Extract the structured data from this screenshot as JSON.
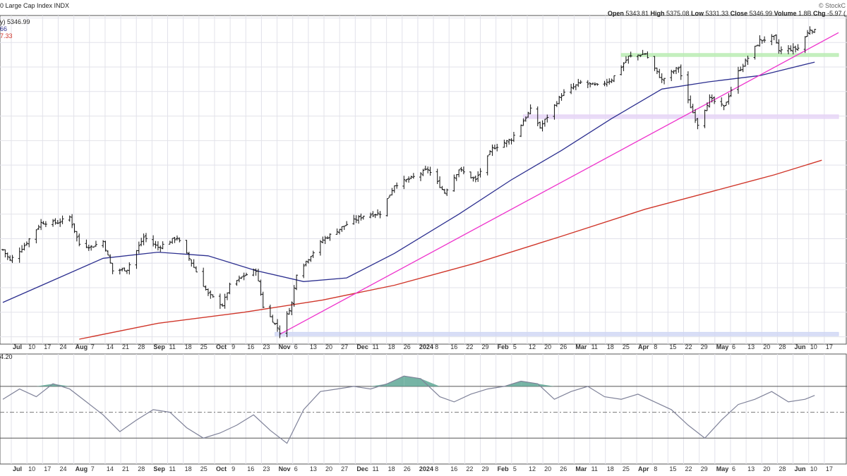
{
  "header": {
    "title": "0 Large Cap Index  INDX",
    "watermark": "© StockC",
    "quote_line": [
      {
        "label": "Open",
        "value": "5343.81"
      },
      {
        "label": "High",
        "value": "5375.08"
      },
      {
        "label": "Low",
        "value": "5331.33"
      },
      {
        "label": "Close",
        "value": "5346.99"
      },
      {
        "label": "Volume",
        "value": "1.8B"
      },
      {
        "label": "Chg",
        "value": "-5.97 ("
      }
    ],
    "legend_price": "y) 5346.99",
    "legend_ma50": "66",
    "legend_ma200": "7.33",
    "indicator_label": "4.20"
  },
  "colors": {
    "background": "#ffffff",
    "grid": "#e2e2ea",
    "price_bars": "#111111",
    "ma_short": "#2c2f8f",
    "ma_long": "#d0362a",
    "trendline": "#ee33cc",
    "support_zone_green": "#b8ecb0",
    "support_zone_purple": "#e6d4f6",
    "support_zone_blue": "#cfd6f4",
    "indicator_line": "#7f8299",
    "indicator_fill": "#5ea795"
  },
  "x_axis": {
    "labels": [
      "Jul",
      "10",
      "17",
      "24",
      "Aug",
      "7",
      "14",
      "21",
      "28",
      "Sep",
      "11",
      "18",
      "25",
      "Oct",
      "9",
      "16",
      "23",
      "Nov",
      "6",
      "13",
      "20",
      "27",
      "Dec",
      "11",
      "18",
      "26",
      "2024",
      "8",
      "16",
      "22",
      "29",
      "Feb",
      "5",
      "12",
      "20",
      "26",
      "Mar",
      "11",
      "18",
      "25",
      "Apr",
      "8",
      "15",
      "22",
      "29",
      "May",
      "6",
      "13",
      "20",
      "28",
      "Jun",
      "10",
      "17"
    ],
    "bold": [
      "Jul",
      "Aug",
      "Sep",
      "Oct",
      "Nov",
      "Dec",
      "2024",
      "Feb",
      "Mar",
      "Apr",
      "May",
      "Jun"
    ]
  },
  "chart_data": [
    {
      "type": "ohlc",
      "title": "0 Large Cap Index INDX",
      "x_start": "2023-07-03",
      "x_end": "2024-06-17",
      "ohlc_close": [
        5346.99
      ],
      "last_bar": {
        "open": 5343.81,
        "high": 5375.08,
        "low": 5331.33,
        "close": 5346.99,
        "volume": "1.8B",
        "change": -5.97
      },
      "series": [
        {
          "name": "Price",
          "points": [
            [
              "2023-07-03",
              4455
            ],
            [
              "2023-07-06",
              4411
            ],
            [
              "2023-07-12",
              4472
            ],
            [
              "2023-07-19",
              4565
            ],
            [
              "2023-07-26",
              4566
            ],
            [
              "2023-07-31",
              4588
            ],
            [
              "2023-08-04",
              4478
            ],
            [
              "2023-08-09",
              4467
            ],
            [
              "2023-08-14",
              4489
            ],
            [
              "2023-08-18",
              4369
            ],
            [
              "2023-08-24",
              4376
            ],
            [
              "2023-08-31",
              4507
            ],
            [
              "2023-09-06",
              4465
            ],
            [
              "2023-09-14",
              4505
            ],
            [
              "2023-09-20",
              4402
            ],
            [
              "2023-09-27",
              4274
            ],
            [
              "2023-10-03",
              4229
            ],
            [
              "2023-10-06",
              4308
            ],
            [
              "2023-10-12",
              4349
            ],
            [
              "2023-10-17",
              4373
            ],
            [
              "2023-10-20",
              4224
            ],
            [
              "2023-10-26",
              4137
            ],
            [
              "2023-10-27",
              4117
            ],
            [
              "2023-11-01",
              4237
            ],
            [
              "2023-11-03",
              4358
            ],
            [
              "2023-11-14",
              4495
            ],
            [
              "2023-11-24",
              4559
            ],
            [
              "2023-12-01",
              4594
            ],
            [
              "2023-12-08",
              4604
            ],
            [
              "2023-12-14",
              4719
            ],
            [
              "2023-12-21",
              4746
            ],
            [
              "2023-12-28",
              4783
            ],
            [
              "2024-01-04",
              4688
            ],
            [
              "2024-01-10",
              4783
            ],
            [
              "2024-01-17",
              4739
            ],
            [
              "2024-01-24",
              4868
            ],
            [
              "2024-02-01",
              4906
            ],
            [
              "2024-02-09",
              5026
            ],
            [
              "2024-02-13",
              4953
            ],
            [
              "2024-02-22",
              5087
            ],
            [
              "2024-03-01",
              5137
            ],
            [
              "2024-03-08",
              5123
            ],
            [
              "2024-03-14",
              5150
            ],
            [
              "2024-03-21",
              5241
            ],
            [
              "2024-03-28",
              5254
            ],
            [
              "2024-04-04",
              5147
            ],
            [
              "2024-04-11",
              5199
            ],
            [
              "2024-04-15",
              5061
            ],
            [
              "2024-04-19",
              4967
            ],
            [
              "2024-04-24",
              5071
            ],
            [
              "2024-04-30",
              5036
            ],
            [
              "2024-05-06",
              5180
            ],
            [
              "2024-05-15",
              5308
            ],
            [
              "2024-05-21",
              5321
            ],
            [
              "2024-05-23",
              5267
            ],
            [
              "2024-05-31",
              5277
            ],
            [
              "2024-06-05",
              5354
            ],
            [
              "2024-06-07",
              5346.99
            ]
          ]
        },
        {
          "name": "MA short",
          "points": [
            [
              "2023-07-03",
              4240
            ],
            [
              "2023-07-24",
              4330
            ],
            [
              "2023-08-14",
              4420
            ],
            [
              "2023-09-06",
              4445
            ],
            [
              "2023-09-27",
              4430
            ],
            [
              "2023-10-17",
              4370
            ],
            [
              "2023-11-06",
              4325
            ],
            [
              "2023-11-24",
              4340
            ],
            [
              "2023-12-14",
              4440
            ],
            [
              "2024-01-10",
              4600
            ],
            [
              "2024-02-01",
              4740
            ],
            [
              "2024-02-22",
              4860
            ],
            [
              "2024-03-14",
              4990
            ],
            [
              "2024-04-04",
              5110
            ],
            [
              "2024-04-24",
              5140
            ],
            [
              "2024-05-15",
              5165
            ],
            [
              "2024-06-07",
              5220
            ]
          ]
        },
        {
          "name": "MA long",
          "points": [
            [
              "2023-08-04",
              4090
            ],
            [
              "2023-09-06",
              4155
            ],
            [
              "2023-10-12",
              4200
            ],
            [
              "2023-11-14",
              4250
            ],
            [
              "2023-12-14",
              4310
            ],
            [
              "2024-01-17",
              4400
            ],
            [
              "2024-02-22",
              4510
            ],
            [
              "2024-03-28",
              4620
            ],
            [
              "2024-04-24",
              4690
            ],
            [
              "2024-05-21",
              4760
            ],
            [
              "2024-06-10",
              4820
            ]
          ]
        }
      ],
      "trendline": {
        "from": [
          "2023-10-27",
          4110
        ],
        "to": [
          "2024-06-17",
          5340
        ]
      },
      "zones": [
        {
          "color": "green",
          "from": "2024-03-18",
          "to": "2024-06-17",
          "low": 5243,
          "high": 5255
        },
        {
          "color": "purple",
          "from": "2024-02-06",
          "to": "2024-06-17",
          "low": 4990,
          "high": 5005
        },
        {
          "color": "blue",
          "from": "2023-10-25",
          "to": "2024-06-17",
          "low": 4104,
          "high": 4118
        }
      ],
      "ylim": [
        4070,
        5410
      ]
    },
    {
      "type": "line",
      "title": "4.20",
      "indicator_bands": {
        "upper": 70,
        "mid": 50,
        "lower": 30
      },
      "ylim": [
        10,
        95
      ],
      "series": [
        {
          "points": [
            [
              "2023-07-03",
              60
            ],
            [
              "2023-07-10",
              68
            ],
            [
              "2023-07-17",
              62
            ],
            [
              "2023-07-24",
              72
            ],
            [
              "2023-07-31",
              68
            ],
            [
              "2023-08-07",
              58
            ],
            [
              "2023-08-14",
              48
            ],
            [
              "2023-08-21",
              35
            ],
            [
              "2023-08-28",
              44
            ],
            [
              "2023-09-04",
              52
            ],
            [
              "2023-09-11",
              50
            ],
            [
              "2023-09-18",
              38
            ],
            [
              "2023-09-25",
              30
            ],
            [
              "2023-10-02",
              34
            ],
            [
              "2023-10-09",
              40
            ],
            [
              "2023-10-16",
              48
            ],
            [
              "2023-10-23",
              36
            ],
            [
              "2023-10-30",
              26
            ],
            [
              "2023-11-06",
              52
            ],
            [
              "2023-11-13",
              66
            ],
            [
              "2023-11-20",
              68
            ],
            [
              "2023-11-27",
              70
            ],
            [
              "2023-12-04",
              68
            ],
            [
              "2023-12-11",
              72
            ],
            [
              "2023-12-18",
              78
            ],
            [
              "2023-12-25",
              76
            ],
            [
              "2024-01-02",
              62
            ],
            [
              "2024-01-08",
              58
            ],
            [
              "2024-01-15",
              64
            ],
            [
              "2024-01-22",
              68
            ],
            [
              "2024-01-29",
              70
            ],
            [
              "2024-02-05",
              74
            ],
            [
              "2024-02-12",
              72
            ],
            [
              "2024-02-19",
              60
            ],
            [
              "2024-02-26",
              66
            ],
            [
              "2024-03-04",
              70
            ],
            [
              "2024-03-11",
              62
            ],
            [
              "2024-03-18",
              60
            ],
            [
              "2024-03-25",
              64
            ],
            [
              "2024-04-01",
              58
            ],
            [
              "2024-04-08",
              52
            ],
            [
              "2024-04-15",
              40
            ],
            [
              "2024-04-22",
              30
            ],
            [
              "2024-04-29",
              44
            ],
            [
              "2024-05-06",
              56
            ],
            [
              "2024-05-13",
              60
            ],
            [
              "2024-05-20",
              66
            ],
            [
              "2024-05-27",
              58
            ],
            [
              "2024-06-03",
              60
            ],
            [
              "2024-06-07",
              63
            ]
          ]
        }
      ]
    }
  ]
}
